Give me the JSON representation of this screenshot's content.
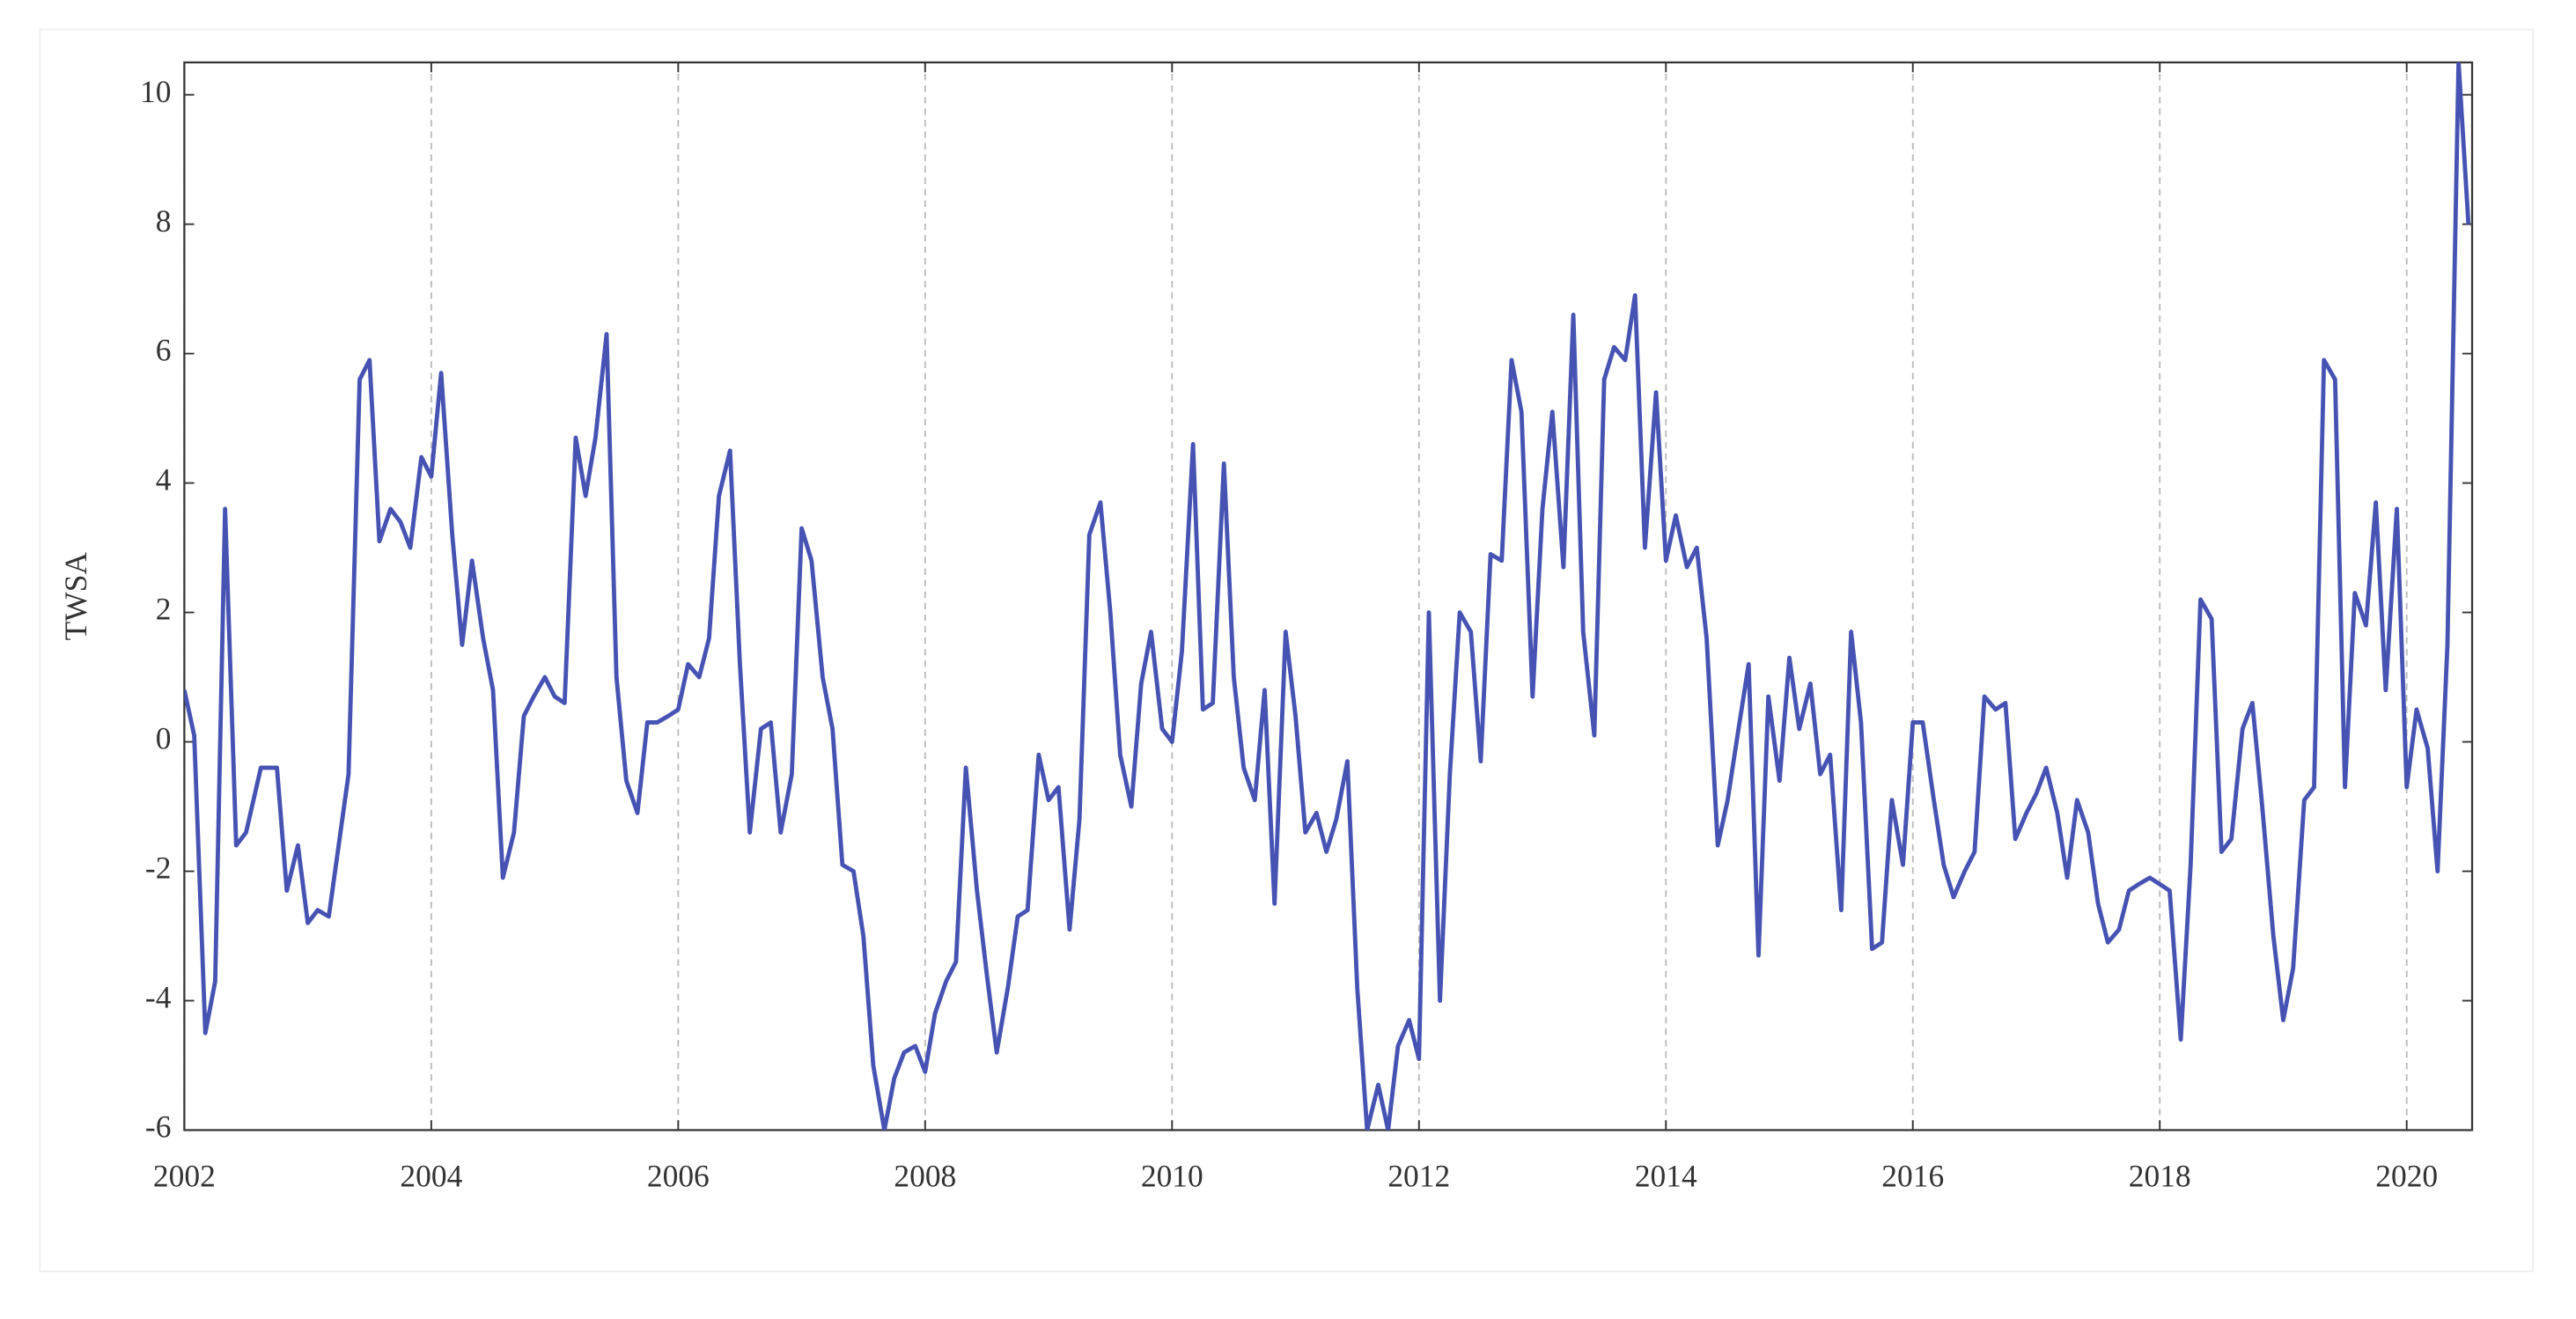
{
  "chart_data": {
    "type": "line",
    "y_label": "TWSA",
    "x": [
      2002.0,
      2002.08,
      2002.17,
      2002.25,
      2002.33,
      2002.42,
      2002.5,
      2002.62,
      2002.75,
      2002.83,
      2002.92,
      2003.0,
      2003.08,
      2003.17,
      2003.33,
      2003.42,
      2003.5,
      2003.58,
      2003.67,
      2003.75,
      2003.83,
      2003.92,
      2004.0,
      2004.08,
      2004.17,
      2004.25,
      2004.33,
      2004.42,
      2004.5,
      2004.58,
      2004.67,
      2004.75,
      2004.83,
      2004.92,
      2005.0,
      2005.08,
      2005.17,
      2005.25,
      2005.33,
      2005.42,
      2005.5,
      2005.58,
      2005.67,
      2005.75,
      2005.83,
      2005.92,
      2006.0,
      2006.08,
      2006.17,
      2006.25,
      2006.33,
      2006.42,
      2006.5,
      2006.58,
      2006.67,
      2006.75,
      2006.83,
      2006.92,
      2007.0,
      2007.08,
      2007.17,
      2007.25,
      2007.33,
      2007.42,
      2007.5,
      2007.58,
      2007.67,
      2007.75,
      2007.83,
      2007.92,
      2008.0,
      2008.08,
      2008.17,
      2008.25,
      2008.33,
      2008.42,
      2008.5,
      2008.58,
      2008.67,
      2008.75,
      2008.83,
      2008.92,
      2009.0,
      2009.08,
      2009.17,
      2009.25,
      2009.33,
      2009.42,
      2009.5,
      2009.58,
      2009.67,
      2009.75,
      2009.83,
      2009.92,
      2010.0,
      2010.08,
      2010.17,
      2010.25,
      2010.33,
      2010.42,
      2010.5,
      2010.58,
      2010.67,
      2010.75,
      2010.83,
      2010.92,
      2011.0,
      2011.08,
      2011.17,
      2011.25,
      2011.33,
      2011.42,
      2011.5,
      2011.58,
      2011.67,
      2011.75,
      2011.83,
      2011.92,
      2012.0,
      2012.08,
      2012.17,
      2012.25,
      2012.33,
      2012.42,
      2012.5,
      2012.58,
      2012.67,
      2012.75,
      2012.83,
      2012.92,
      2013.0,
      2013.08,
      2013.17,
      2013.25,
      2013.33,
      2013.42,
      2013.5,
      2013.58,
      2013.67,
      2013.75,
      2013.83,
      2013.92,
      2014.0,
      2014.08,
      2014.17,
      2014.25,
      2014.33,
      2014.42,
      2014.5,
      2014.58,
      2014.67,
      2014.75,
      2014.83,
      2014.92,
      2015.0,
      2015.08,
      2015.17,
      2015.25,
      2015.33,
      2015.42,
      2015.5,
      2015.58,
      2015.67,
      2015.75,
      2015.83,
      2015.92,
      2016.0,
      2016.08,
      2016.17,
      2016.25,
      2016.33,
      2016.42,
      2016.5,
      2016.58,
      2016.67,
      2016.75,
      2016.83,
      2016.92,
      2017.0,
      2017.08,
      2017.17,
      2017.25,
      2017.33,
      2017.42,
      2017.5,
      2017.58,
      2017.67,
      2017.75,
      2017.83,
      2017.92,
      2018.0,
      2018.08,
      2018.17,
      2018.25,
      2018.33,
      2018.42,
      2018.5,
      2018.58,
      2018.67,
      2018.75,
      2018.83,
      2018.92,
      2019.0,
      2019.08,
      2019.17,
      2019.25,
      2019.33,
      2019.42,
      2019.5,
      2019.58,
      2019.67,
      2019.75,
      2019.83,
      2019.92,
      2020.0,
      2020.08,
      2020.17,
      2020.25,
      2020.33,
      2020.42,
      2020.5
    ],
    "series": [
      {
        "name": "TWSA",
        "color": "#4653b3",
        "values": [
          0.8,
          0.1,
          -4.5,
          -3.7,
          3.6,
          -1.6,
          -1.4,
          -0.4,
          -0.4,
          -2.3,
          -1.6,
          -2.8,
          -2.6,
          -2.7,
          -0.5,
          5.6,
          5.9,
          3.1,
          3.6,
          3.4,
          3.0,
          4.4,
          4.1,
          5.7,
          3.2,
          1.5,
          2.8,
          1.6,
          0.8,
          -2.1,
          -1.4,
          0.4,
          0.7,
          1.0,
          0.7,
          0.6,
          4.7,
          3.8,
          4.7,
          6.3,
          1.0,
          -0.6,
          -1.1,
          0.3,
          0.3,
          0.4,
          0.5,
          1.2,
          1.0,
          1.6,
          3.8,
          4.5,
          1.2,
          -1.4,
          0.2,
          0.3,
          -1.4,
          -0.5,
          3.3,
          2.8,
          1.0,
          0.2,
          -1.9,
          -2.0,
          -3.0,
          -5.0,
          -6.0,
          -5.2,
          -4.8,
          -4.7,
          -5.1,
          -4.2,
          -3.7,
          -3.4,
          -0.4,
          -2.3,
          -3.6,
          -4.8,
          -3.8,
          -2.7,
          -2.6,
          -0.2,
          -0.9,
          -0.7,
          -2.9,
          -1.2,
          3.2,
          3.7,
          2.0,
          -0.2,
          -1.0,
          0.9,
          1.7,
          0.2,
          0.0,
          1.4,
          4.6,
          0.5,
          0.6,
          4.3,
          1.0,
          -0.4,
          -0.9,
          0.8,
          -2.5,
          1.7,
          0.4,
          -1.4,
          -1.1,
          -1.7,
          -1.2,
          -0.3,
          -3.8,
          -6.0,
          -5.3,
          -6.0,
          -4.7,
          -4.3,
          -4.9,
          2.0,
          -4.0,
          -0.5,
          2.0,
          1.7,
          -0.3,
          2.9,
          2.8,
          5.9,
          5.1,
          0.7,
          3.6,
          5.1,
          2.7,
          6.6,
          1.7,
          0.1,
          5.6,
          6.1,
          5.9,
          6.9,
          3.0,
          5.4,
          2.8,
          3.5,
          2.7,
          3.0,
          1.6,
          -1.6,
          -0.9,
          0.1,
          1.2,
          -3.3,
          0.7,
          -0.6,
          1.3,
          0.2,
          0.9,
          -0.5,
          -0.2,
          -2.6,
          1.7,
          0.3,
          -3.2,
          -3.1,
          -0.9,
          -1.9,
          0.3,
          0.3,
          -0.9,
          -1.9,
          -2.4,
          -2.0,
          -1.7,
          0.7,
          0.5,
          0.6,
          -1.5,
          -1.1,
          -0.8,
          -0.4,
          -1.1,
          -2.1,
          -0.9,
          -1.4,
          -2.5,
          -3.1,
          -2.9,
          -2.3,
          -2.2,
          -2.1,
          -2.2,
          -2.3,
          -4.6,
          -1.9,
          2.2,
          1.9,
          -1.7,
          -1.5,
          0.2,
          0.6,
          -1.0,
          -3.0,
          -4.3,
          -3.5,
          -0.9,
          -0.7,
          5.9,
          5.6,
          -0.7,
          2.3,
          1.8,
          3.7,
          0.8,
          3.6,
          -0.7,
          0.5,
          -0.1,
          -2.0,
          1.5,
          10.5,
          8.0
        ]
      }
    ],
    "xlim": [
      2002,
      2020.53
    ],
    "ylim": [
      -6,
      10.5
    ],
    "xticks": [
      2002,
      2004,
      2006,
      2008,
      2010,
      2012,
      2014,
      2016,
      2018,
      2020
    ],
    "yticks": [
      -6,
      -4,
      -2,
      0,
      2,
      4,
      6,
      8,
      10
    ],
    "grid": true
  }
}
